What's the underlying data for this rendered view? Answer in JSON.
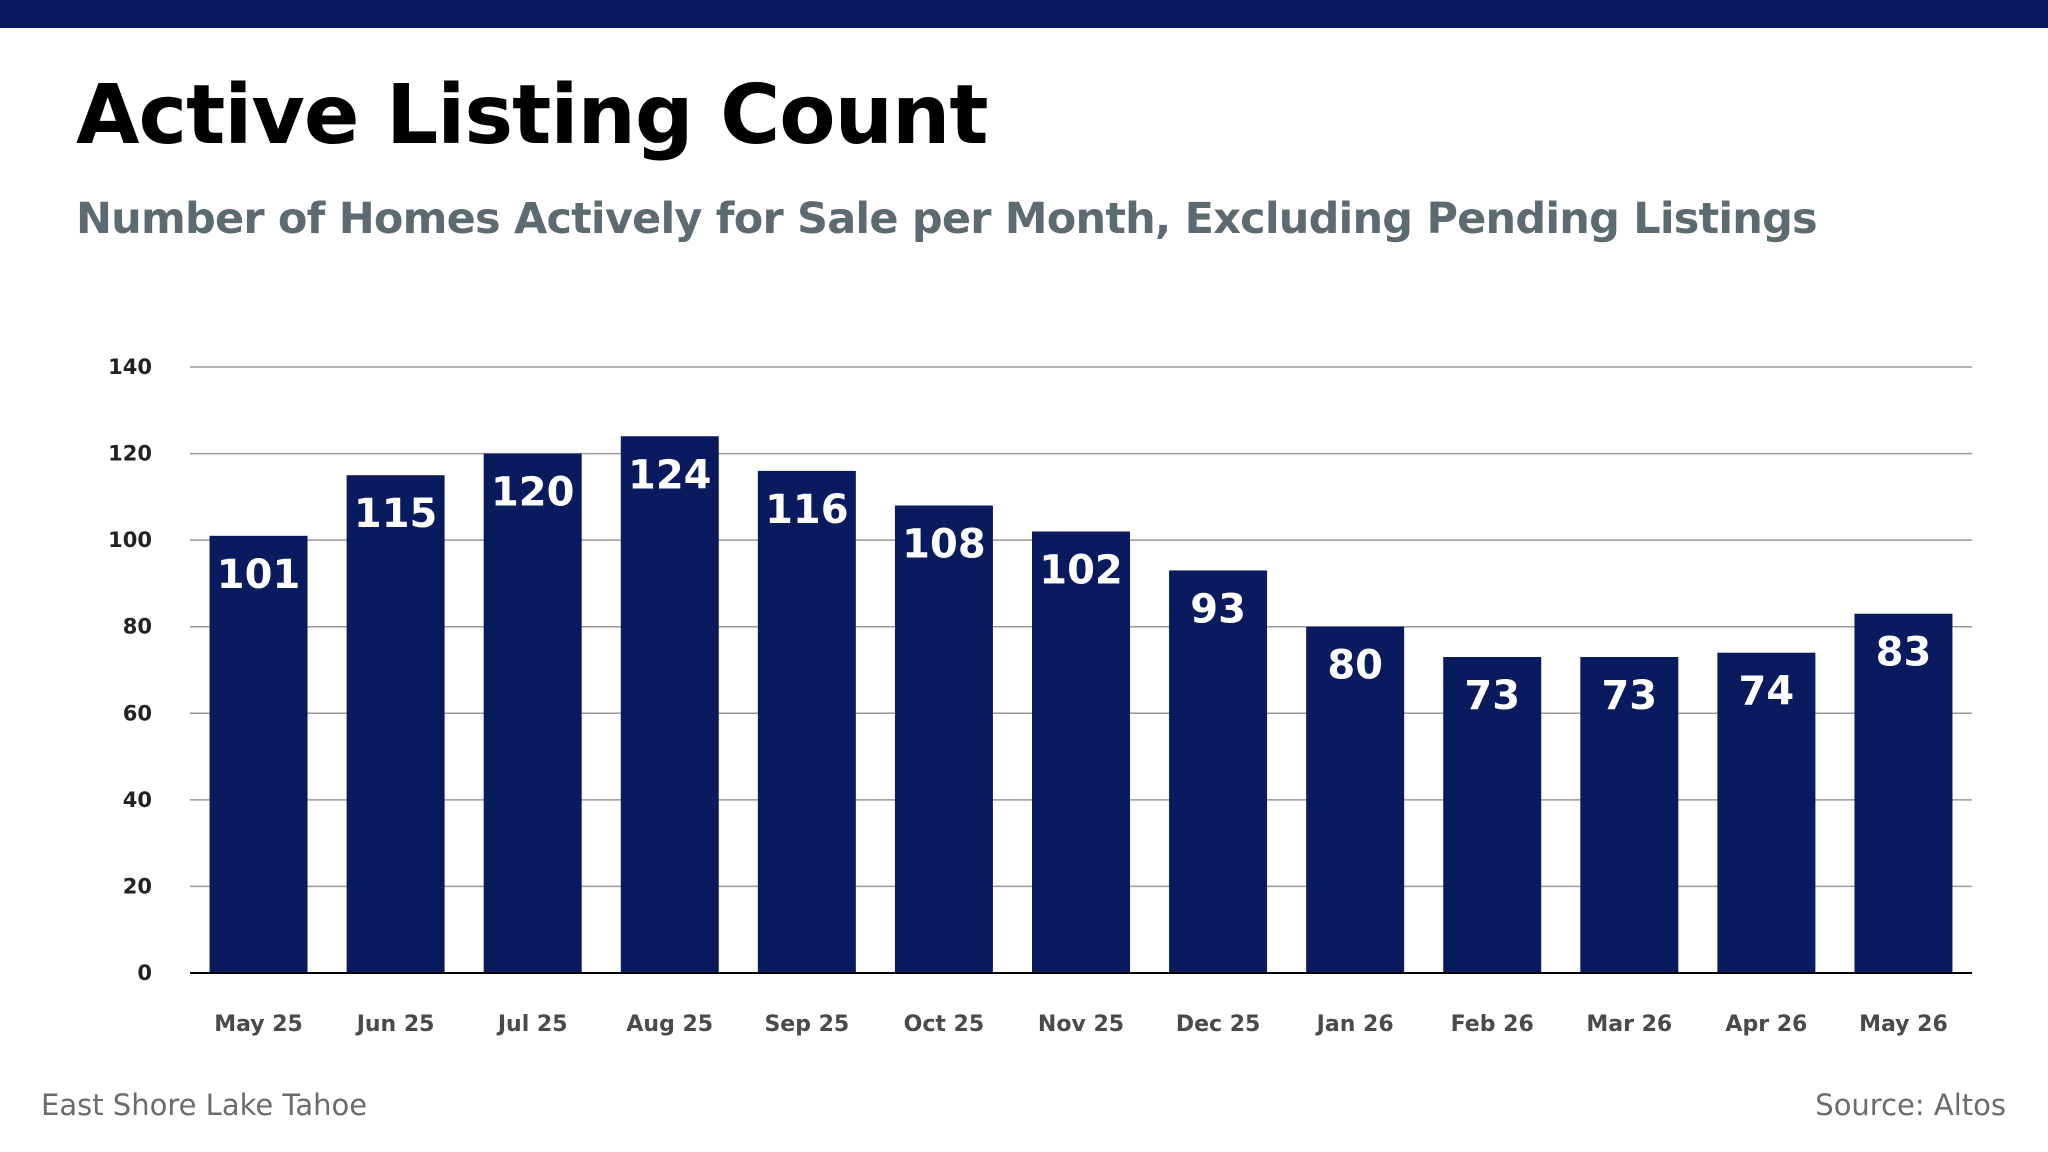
{
  "colors": {
    "brand": "#0a1a5e",
    "subtitle": "#5c6b72",
    "grid": "#9a9a9a",
    "axis": "#000000",
    "tick_text": "#444444",
    "bar_label": "#ffffff"
  },
  "header": {
    "title": "Active Listing Count",
    "subtitle": "Number of Homes Actively for Sale per Month, Excluding Pending Listings"
  },
  "footer": {
    "location": "East Shore Lake Tahoe",
    "source": "Source: Altos"
  },
  "chart_data": {
    "type": "bar",
    "title": "Active Listing Count",
    "subtitle": "Number of Homes Actively for Sale per Month, Excluding Pending Listings",
    "categories": [
      "May 25",
      "Jun 25",
      "Jul 25",
      "Aug 25",
      "Sep 25",
      "Oct 25",
      "Nov 25",
      "Dec 25",
      "Jan 26",
      "Feb 26",
      "Mar 26",
      "Apr 26",
      "May 26"
    ],
    "values": [
      101,
      115,
      120,
      124,
      116,
      108,
      102,
      93,
      80,
      73,
      73,
      74,
      83
    ],
    "ylim": [
      0,
      140
    ],
    "yticks": [
      0,
      20,
      40,
      60,
      80,
      100,
      120,
      140
    ],
    "grid": true,
    "legend": "none",
    "data_labels": "inside-top",
    "bar_color": "#0a1a5e"
  }
}
